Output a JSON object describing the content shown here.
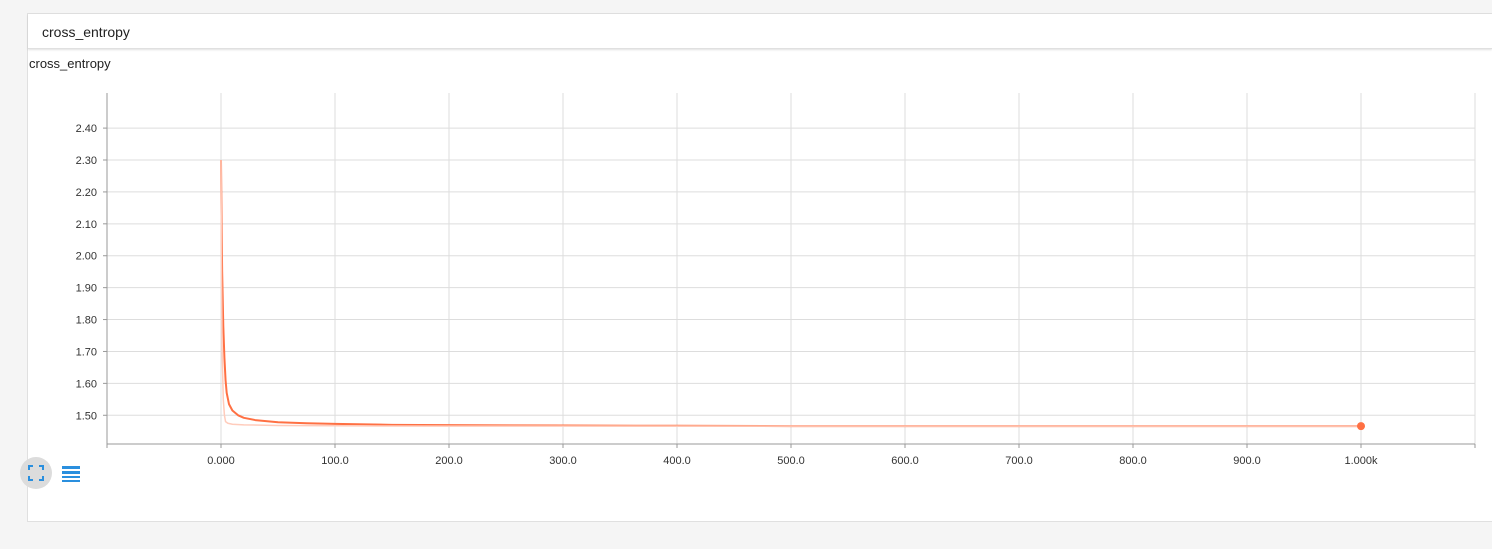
{
  "card": {
    "title": "cross_entropy"
  },
  "colors": {
    "series": "#ff7043",
    "series_raw": "#ffccbc",
    "grid": "#dddddd",
    "icon_blue": "#2a8fde"
  },
  "icons": {
    "fullscreen": "fullscreen-icon",
    "data_table": "data-table-icon"
  },
  "chart_data": {
    "type": "line",
    "title": "cross_entropy",
    "xlabel": "",
    "ylabel": "",
    "xlim": [
      -100,
      1100
    ],
    "ylim": [
      1.41,
      2.51
    ],
    "xticks": [
      0,
      100,
      200,
      300,
      400,
      500,
      600,
      700,
      800,
      900,
      1000
    ],
    "xtick_labels": [
      "0.000",
      "100.0",
      "200.0",
      "300.0",
      "400.0",
      "500.0",
      "600.0",
      "700.0",
      "800.0",
      "900.0",
      "1.000k"
    ],
    "yticks": [
      1.5,
      1.6,
      1.7,
      1.8,
      1.9,
      2.0,
      2.1,
      2.2,
      2.3,
      2.4
    ],
    "ytick_labels": [
      "1.50",
      "1.60",
      "1.70",
      "1.80",
      "1.90",
      "2.00",
      "2.10",
      "2.20",
      "2.30",
      "2.40"
    ],
    "grid": true,
    "series": [
      {
        "kind": "smoothed",
        "x": [
          0,
          0.5,
          1,
          2,
          3,
          4,
          5,
          7,
          10,
          15,
          20,
          30,
          50,
          75,
          100,
          150,
          200,
          300,
          400,
          500,
          600,
          700,
          800,
          900,
          1000
        ],
        "y": [
          2.3,
          2.1,
          1.95,
          1.78,
          1.68,
          1.61,
          1.57,
          1.535,
          1.515,
          1.5,
          1.492,
          1.485,
          1.478,
          1.475,
          1.473,
          1.47,
          1.469,
          1.468,
          1.467,
          1.466,
          1.466,
          1.466,
          1.466,
          1.466,
          1.466
        ]
      },
      {
        "kind": "raw",
        "x": [
          0,
          0.5,
          1,
          2,
          3,
          4,
          6,
          10,
          20,
          50,
          100,
          200,
          400,
          600,
          800,
          1000
        ],
        "y": [
          2.3,
          1.9,
          1.7,
          1.55,
          1.5,
          1.48,
          1.475,
          1.472,
          1.47,
          1.468,
          1.467,
          1.466,
          1.466,
          1.466,
          1.466,
          1.466
        ]
      }
    ]
  }
}
